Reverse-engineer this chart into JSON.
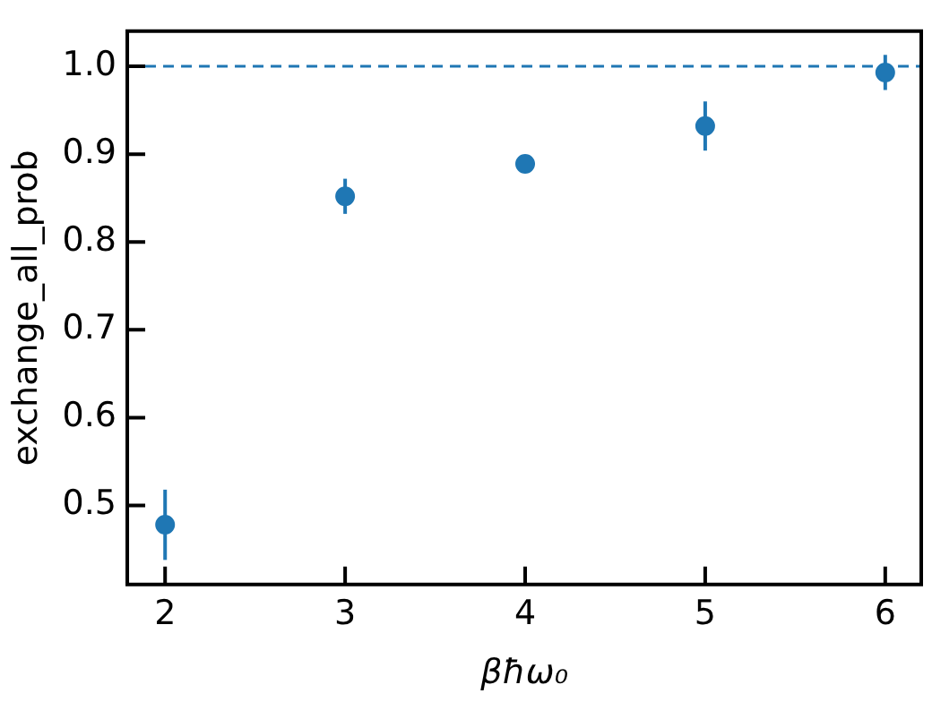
{
  "chart_data": {
    "type": "scatter",
    "xlabel": "βħω₀",
    "ylabel": "exchange_all_prob",
    "x": [
      2,
      3,
      4,
      5,
      6
    ],
    "series": [
      {
        "color": "#1f77b4",
        "values": [
          0.478,
          0.852,
          0.889,
          0.932,
          0.993
        ],
        "errors": [
          0.04,
          0.02,
          0.004,
          0.028,
          0.02
        ]
      }
    ],
    "marker": "circle",
    "xlim": [
      1.79,
      6.2
    ],
    "xticks": [
      2,
      3,
      4,
      5,
      6
    ],
    "ylim": [
      0.41,
      1.04
    ],
    "yticks": [
      {
        "value": 0.5,
        "label": "0.5"
      },
      {
        "value": 0.6,
        "label": "0.6"
      },
      {
        "value": 0.7,
        "label": "0.7"
      },
      {
        "value": 0.8,
        "label": "0.8"
      },
      {
        "value": 0.9,
        "label": "0.9"
      },
      {
        "value": 1.0,
        "label": "1.0"
      }
    ],
    "ref_lines": [
      {
        "axis": "y",
        "value": 1.0,
        "color": "#1f77b4",
        "line_style": "dashed"
      }
    ]
  }
}
